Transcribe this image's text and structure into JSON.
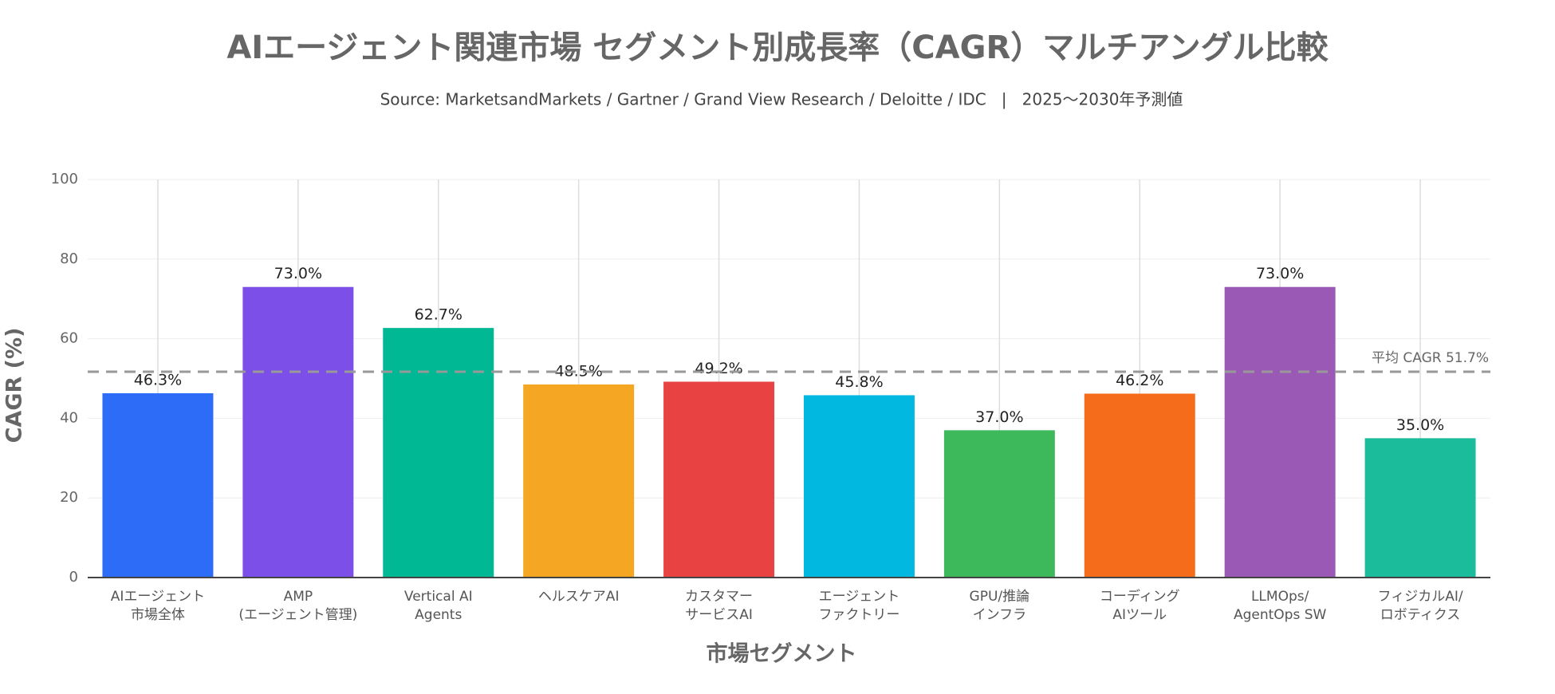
{
  "chart_data": {
    "type": "bar",
    "title": "AIエージェント関連市場 セグメント別成長率（CAGR）マルチアングル比較",
    "subtitle": "Source: MarketsandMarkets / Gartner / Grand View Research / Deloitte / IDC   |   2025〜2030年予測値",
    "x_label": "市場セグメント",
    "y_label": "CAGR (%)",
    "categories": [
      [
        "AIエージェント",
        "市場全体"
      ],
      [
        "AMP",
        "(エージェント管理)"
      ],
      [
        "Vertical AI",
        "Agents"
      ],
      [
        "ヘルスケアAI"
      ],
      [
        "カスタマー",
        "サービスAI"
      ],
      [
        "エージェント",
        "ファクトリー"
      ],
      [
        "GPU/推論",
        "インフラ"
      ],
      [
        "コーディング",
        "AIツール"
      ],
      [
        "LLMOps/",
        "AgentOps SW"
      ],
      [
        "フィジカルAI/",
        "ロボティクス"
      ]
    ],
    "values": [
      46.3,
      73.0,
      62.7,
      48.5,
      49.2,
      45.8,
      37.0,
      46.2,
      73.0,
      35.0
    ],
    "value_labels": [
      "46.3%",
      "73.0%",
      "62.7%",
      "48.5%",
      "49.2%",
      "45.8%",
      "37.0%",
      "46.2%",
      "73.0%",
      "35.0%"
    ],
    "colors": [
      "#2d6cf6",
      "#7b4fe8",
      "#00b894",
      "#f5a623",
      "#e84342",
      "#00b8e0",
      "#3db95c",
      "#f56c1a",
      "#9b59b6",
      "#1abc9c"
    ],
    "average": {
      "value": 51.7,
      "label": "平均 CAGR 51.7%"
    },
    "ylim": [
      0,
      100
    ],
    "yticks": [
      0,
      20,
      40,
      60,
      80,
      100
    ],
    "grid": true
  }
}
